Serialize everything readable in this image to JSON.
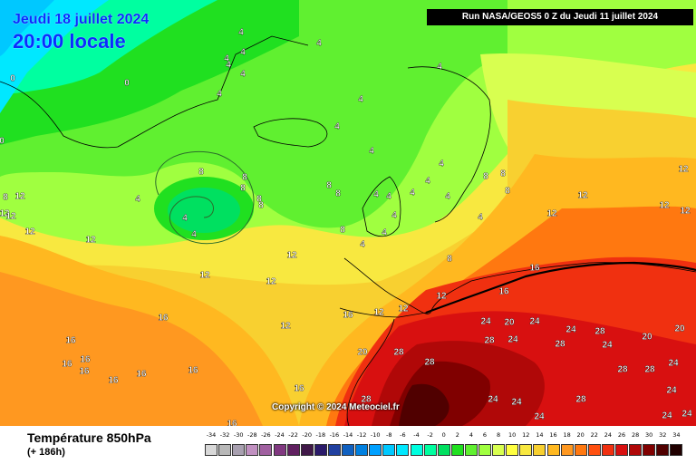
{
  "header": {
    "date": "Jeudi 18 juillet 2024",
    "time": "20:00 locale",
    "run": "Run NASA/GEOS5 0 Z du Jeudi 11 juillet 2024"
  },
  "copyright": "Copyright © 2024 Meteociel.fr",
  "footer": {
    "parameter": "Température 850hPa",
    "lead": "(+ 186h)"
  },
  "legend": {
    "labels": [
      "-34",
      "-32",
      "-30",
      "-28",
      "-26",
      "-24",
      "-22",
      "-20",
      "-18",
      "-16",
      "-14",
      "-12",
      "-10",
      "-8",
      "-6",
      "-4",
      "-2",
      "0",
      "2",
      "4",
      "6",
      "8",
      "10",
      "12",
      "14",
      "16",
      "18",
      "20",
      "22",
      "24",
      "26",
      "28",
      "30",
      "32",
      "34"
    ],
    "colors": [
      "#d8d8d8",
      "#b8b8b8",
      "#a8a0b0",
      "#c090c0",
      "#a060a0",
      "#803880",
      "#602060",
      "#401848",
      "#2a1a6a",
      "#2040a0",
      "#1060c0",
      "#0080e0",
      "#00a0ff",
      "#00c8ff",
      "#00e8ff",
      "#00ffe0",
      "#00ffa0",
      "#00e060",
      "#20e020",
      "#60f030",
      "#a0ff40",
      "#d8ff50",
      "#ffff40",
      "#f8e840",
      "#f8d030",
      "#ffb820",
      "#ff9820",
      "#ff7810",
      "#ff5010",
      "#f03010",
      "#d81010",
      "#b00808",
      "#800000",
      "#500000",
      "#200000"
    ]
  },
  "isotherm_labels": [
    {
      "t": "4"
    },
    {
      "t": "4"
    },
    {
      "t": "4"
    },
    {
      "t": "4"
    },
    {
      "t": "4"
    },
    {
      "t": "4"
    },
    {
      "t": "4"
    },
    {
      "t": "4"
    },
    {
      "t": "4"
    },
    {
      "t": "4"
    },
    {
      "t": "4"
    },
    {
      "t": "4"
    },
    {
      "t": "4"
    },
    {
      "t": "4"
    },
    {
      "t": "4"
    },
    {
      "t": "4"
    },
    {
      "t": "4"
    },
    {
      "t": "4"
    },
    {
      "t": "4"
    },
    {
      "t": "4"
    },
    {
      "t": "4"
    },
    {
      "t": "4"
    },
    {
      "t": "4"
    },
    {
      "t": "4"
    },
    {
      "t": "0"
    },
    {
      "t": "0"
    },
    {
      "t": "0"
    },
    {
      "t": "8"
    },
    {
      "t": "8"
    },
    {
      "t": "8"
    },
    {
      "t": "8"
    },
    {
      "t": "8"
    },
    {
      "t": "8"
    },
    {
      "t": "8"
    },
    {
      "t": "8"
    },
    {
      "t": "8"
    },
    {
      "t": "8"
    },
    {
      "t": "8"
    },
    {
      "t": "8"
    },
    {
      "t": "8"
    },
    {
      "t": "12"
    },
    {
      "t": "12"
    },
    {
      "t": "12"
    },
    {
      "t": "12"
    },
    {
      "t": "12"
    },
    {
      "t": "12"
    },
    {
      "t": "12"
    },
    {
      "t": "12"
    },
    {
      "t": "12"
    },
    {
      "t": "12"
    },
    {
      "t": "12"
    },
    {
      "t": "12"
    },
    {
      "t": "12"
    },
    {
      "t": "12"
    },
    {
      "t": "12"
    },
    {
      "t": "12"
    },
    {
      "t": "12"
    },
    {
      "t": "16"
    },
    {
      "t": "16"
    },
    {
      "t": "16"
    },
    {
      "t": "16"
    },
    {
      "t": "16"
    },
    {
      "t": "16"
    },
    {
      "t": "16"
    },
    {
      "t": "16"
    },
    {
      "t": "16"
    },
    {
      "t": "16"
    },
    {
      "t": "16"
    },
    {
      "t": "16"
    },
    {
      "t": "16"
    },
    {
      "t": "20"
    },
    {
      "t": "20"
    },
    {
      "t": "20"
    },
    {
      "t": "20"
    },
    {
      "t": "24"
    },
    {
      "t": "24"
    },
    {
      "t": "24"
    },
    {
      "t": "24"
    },
    {
      "t": "24"
    },
    {
      "t": "24"
    },
    {
      "t": "24"
    },
    {
      "t": "24"
    },
    {
      "t": "24"
    },
    {
      "t": "24"
    },
    {
      "t": "24"
    },
    {
      "t": "24"
    },
    {
      "t": "28"
    },
    {
      "t": "28"
    },
    {
      "t": "28"
    },
    {
      "t": "28"
    },
    {
      "t": "28"
    },
    {
      "t": "28"
    },
    {
      "t": "28"
    },
    {
      "t": "28"
    },
    {
      "t": "28"
    },
    {
      "t": "28"
    }
  ]
}
